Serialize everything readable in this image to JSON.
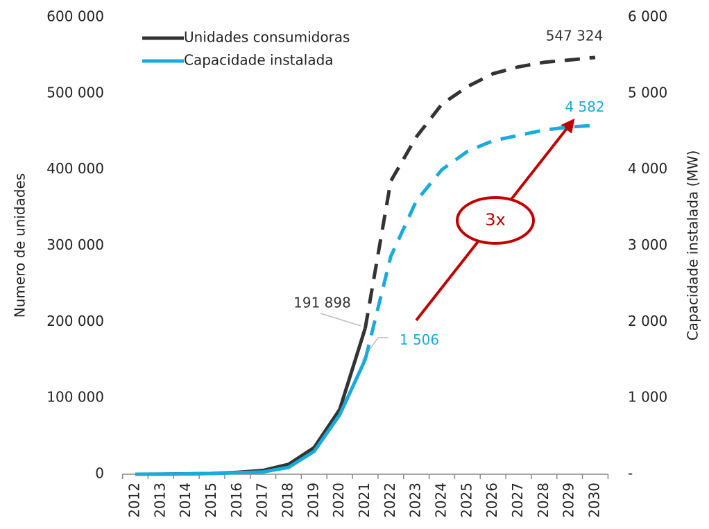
{
  "chart_data": {
    "type": "line",
    "x": [
      "2012",
      "2013",
      "2014",
      "2015",
      "2016",
      "2017",
      "2018",
      "2019",
      "2020",
      "2021",
      "2022",
      "2023",
      "2024",
      "2025",
      "2026",
      "2027",
      "2028",
      "2029",
      "2030"
    ],
    "ylabel": "Numero de unidades",
    "y2label": "Capacidade instalada (MW)",
    "ylim": [
      0,
      600000
    ],
    "yticks": [
      0,
      {
        "value": 100000,
        "label": "100 000"
      },
      {
        "value": 200000,
        "label": "200 000"
      },
      {
        "value": 300000,
        "label": "300 000"
      },
      {
        "value": 400000,
        "label": "400 000"
      },
      {
        "value": 500000,
        "label": "500 000"
      },
      {
        "value": 600000,
        "label": "600 000"
      }
    ],
    "y2lim": [
      0,
      6000
    ],
    "y2ticks": [
      {
        "value": 0,
        "label": "-"
      },
      {
        "value": 1000,
        "label": "1 000"
      },
      {
        "value": 2000,
        "label": "2 000"
      },
      {
        "value": 3000,
        "label": "3 000"
      },
      {
        "value": 4000,
        "label": "4 000"
      },
      {
        "value": 5000,
        "label": "5 000"
      },
      {
        "value": 6000,
        "label": "6 000"
      }
    ],
    "legend": "upper left",
    "series": [
      {
        "name": "Unidades consumidoras",
        "color": "#333333",
        "dash_from": "2021",
        "values": [
          0,
          100,
          500,
          1000,
          2500,
          5000,
          13000,
          35000,
          85000,
          191898,
          385000,
          443000,
          486000,
          509000,
          526000,
          535000,
          541000,
          544000,
          547324
        ],
        "value_labels": [
          null,
          null,
          null,
          null,
          null,
          null,
          null,
          null,
          null,
          "191 898",
          null,
          null,
          null,
          null,
          null,
          null,
          null,
          null,
          "547 324"
        ]
      },
      {
        "name": "Capacidade instalada",
        "color": "#1aabdb",
        "axis": "y2",
        "dash_from": "2021",
        "values": [
          0,
          1,
          5,
          10,
          20,
          30,
          90,
          300,
          780,
          1506,
          2860,
          3590,
          4000,
          4240,
          4380,
          4450,
          4520,
          4560,
          4582
        ],
        "value_labels": [
          null,
          null,
          null,
          null,
          null,
          null,
          null,
          null,
          null,
          "1 506",
          null,
          null,
          null,
          null,
          null,
          null,
          null,
          null,
          "4 582"
        ]
      }
    ],
    "annotations": [
      "3x"
    ]
  }
}
